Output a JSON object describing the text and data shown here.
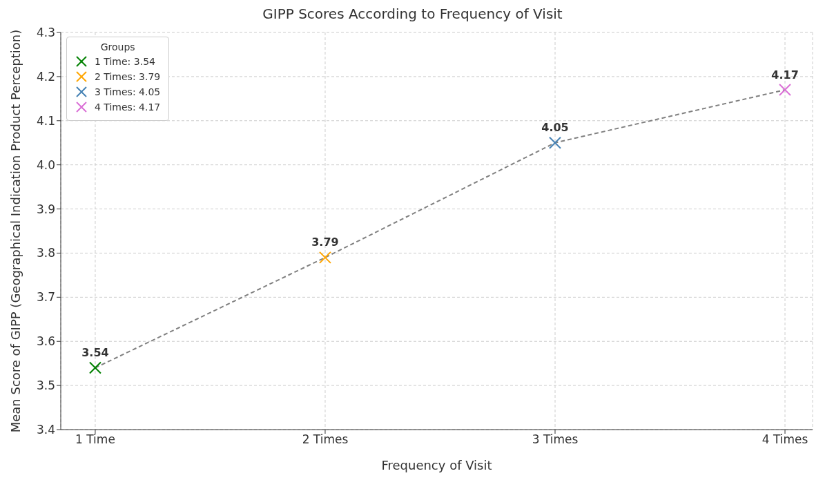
{
  "chart_data": {
    "type": "scatter",
    "title": "GIPP Scores According to Frequency of Visit",
    "xlabel": "Frequency of Visit",
    "ylabel": "Mean Score of GIPP (Geographical Indication Product Perception)",
    "categories": [
      "1 Time",
      "2 Times",
      "3 Times",
      "4 Times"
    ],
    "series": [
      {
        "type": "line",
        "color": "#808080",
        "values": [
          3.54,
          3.79,
          4.05,
          4.17
        ],
        "line_style": "dashed",
        "marker": "none"
      },
      {
        "name": "1 Time: 3.54",
        "color": "#008000",
        "x": [
          "1 Time"
        ],
        "values": [
          3.54
        ],
        "value_labels": [
          "3.54"
        ]
      },
      {
        "name": "2 Times: 3.79",
        "color": "#ffa500",
        "x": [
          "2 Times"
        ],
        "values": [
          3.79
        ],
        "value_labels": [
          "3.79"
        ]
      },
      {
        "name": "3 Times: 4.05",
        "color": "#4682b4",
        "x": [
          "3 Times"
        ],
        "values": [
          4.05
        ],
        "value_labels": [
          "4.05"
        ]
      },
      {
        "name": "4 Times: 4.17",
        "color": "#da70d6",
        "x": [
          "4 Times"
        ],
        "values": [
          4.17
        ],
        "value_labels": [
          "4.17"
        ]
      }
    ],
    "ylim": [
      3.4,
      4.3
    ],
    "yticks": [
      3.4,
      3.5,
      3.6,
      3.7,
      3.8,
      3.9,
      {
        "value": 4.0,
        "label": "4.0"
      },
      4.1,
      4.2,
      4.3
    ],
    "grid": true,
    "legend": "top left",
    "legend_title": "Groups",
    "marker": "cross"
  }
}
